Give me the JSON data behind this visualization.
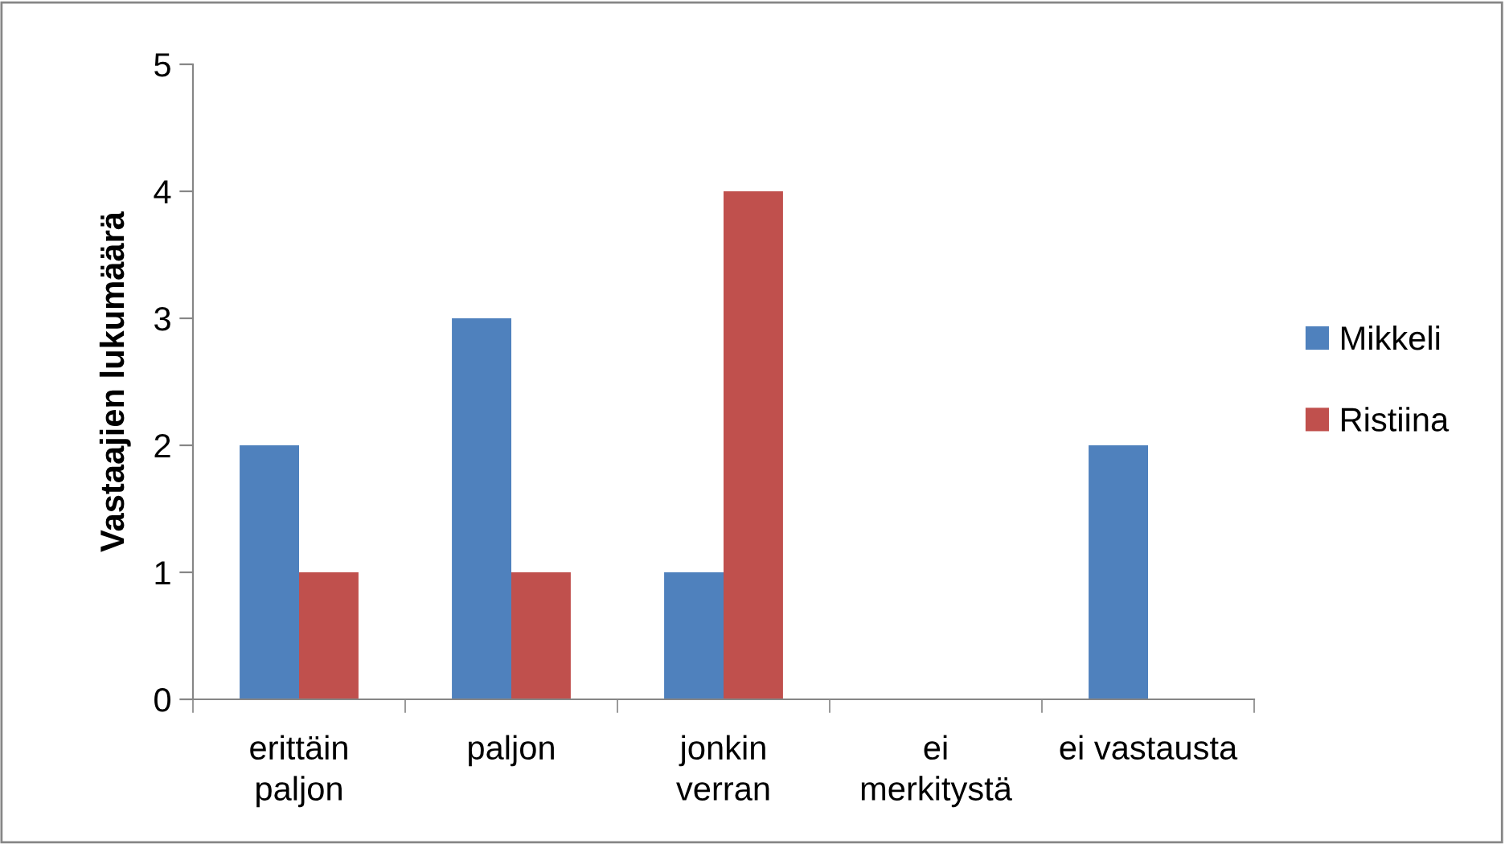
{
  "chart_data": {
    "type": "bar",
    "ylabel": "Vastaajien lukumäärä",
    "categories": [
      "erittäin\npaljon",
      "paljon",
      "jonkin\nverran",
      "ei\nmerkitystä",
      "ei vastausta"
    ],
    "series": [
      {
        "name": "Mikkeli",
        "color": "#4f81bd",
        "values": [
          2,
          3,
          1,
          0,
          2
        ]
      },
      {
        "name": "Ristiina",
        "color": "#c0504d",
        "values": [
          1,
          1,
          4,
          0,
          0
        ]
      }
    ],
    "ylim": [
      0,
      5
    ],
    "yticks": [
      0,
      1,
      2,
      3,
      4,
      5
    ],
    "grid": false,
    "legend": "right"
  }
}
